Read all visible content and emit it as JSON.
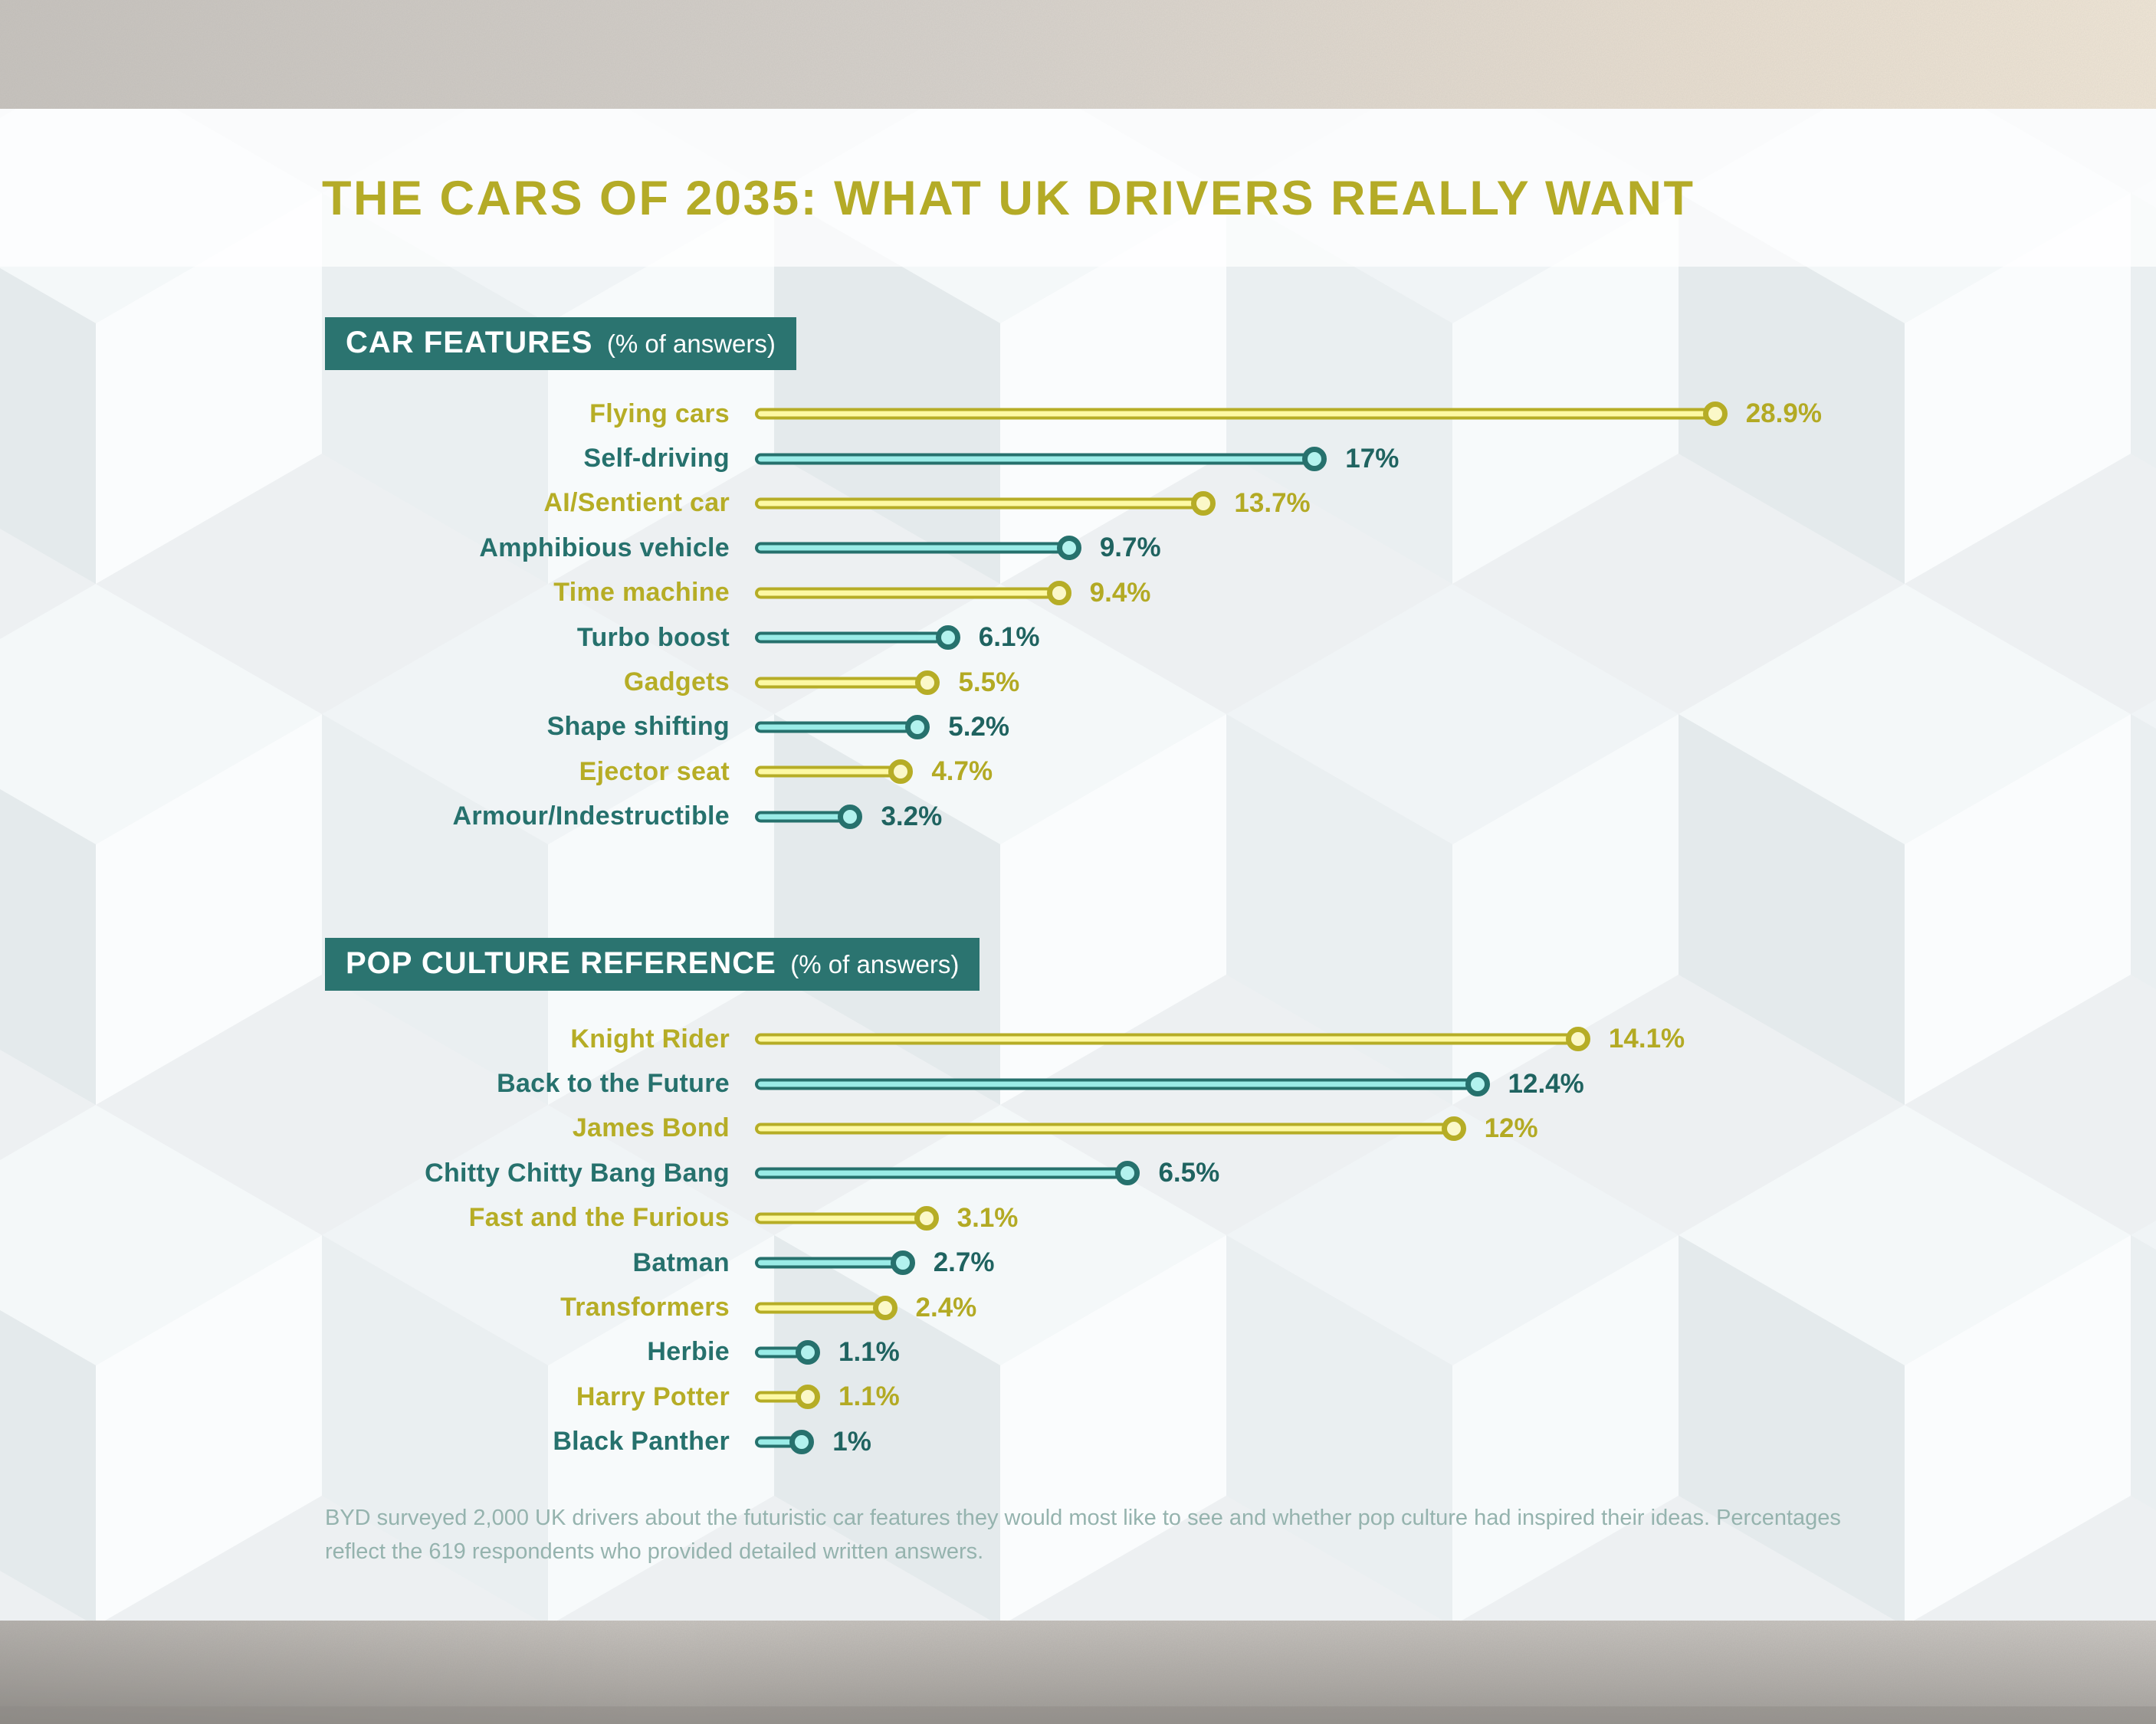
{
  "title": {
    "prefix": "THE CARS OF 2035: ",
    "emphasis": "WHAT UK DRIVERS REALLY WANT"
  },
  "chart_data": [
    {
      "type": "bar",
      "orientation": "horizontal",
      "title": "CAR FEATURES",
      "subtitle": "(% of answers)",
      "categories": [
        "Flying cars",
        "Self-driving",
        "AI/Sentient car",
        "Amphibious vehicle",
        "Time machine",
        "Turbo boost",
        "Gadgets",
        "Shape shifting",
        "Ejector seat",
        "Armour/Indestructible"
      ],
      "values": [
        28.9,
        17,
        13.7,
        9.7,
        9.4,
        6.1,
        5.5,
        5.2,
        4.7,
        3.2
      ],
      "value_labels": [
        "28.9%",
        "17%",
        "13.7%",
        "9.7%",
        "9.4%",
        "6.1%",
        "5.5%",
        "5.2%",
        "4.7%",
        "3.2%"
      ],
      "unit": "% of answers",
      "xlim": [
        0,
        30
      ],
      "grid": false,
      "legend": null,
      "color_pattern": [
        "olive",
        "teal"
      ]
    },
    {
      "type": "bar",
      "orientation": "horizontal",
      "title": "POP CULTURE REFERENCE",
      "subtitle": "(% of answers)",
      "categories": [
        "Knight Rider",
        "Back to the Future",
        "James Bond",
        "Chitty Chitty Bang Bang",
        "Fast and the Furious",
        "Batman",
        "Transformers",
        "Herbie",
        "Harry Potter",
        "Black Panther"
      ],
      "values": [
        14.1,
        12.4,
        12,
        6.5,
        3.1,
        2.7,
        2.4,
        1.1,
        1.1,
        1
      ],
      "value_labels": [
        "14.1%",
        "12.4%",
        "12%",
        "6.5%",
        "3.1%",
        "2.7%",
        "2.4%",
        "1.1%",
        "1.1%",
        "1%"
      ],
      "unit": "% of answers",
      "xlim": [
        0,
        15
      ],
      "grid": false,
      "legend": null,
      "color_pattern": [
        "olive",
        "teal"
      ]
    }
  ],
  "footnote": "BYD surveyed 2,000 UK drivers about the futuristic car features they would most like to see and whether pop culture had inspired their ideas. Percentages reflect the 619 respondents who provided detailed written answers.",
  "colors": {
    "olive": "#b6ad26",
    "olive_light": "#fdf9a4",
    "olive_fill": "#fbf8c8",
    "olive_text": "#b3aa24",
    "teal": "#26716d",
    "teal_light": "#9aece7",
    "teal_fill": "#b2f2ee",
    "teal_text": "#1f6360",
    "header_bg": "#2b7470",
    "header_text": "#ffffff",
    "title_color": "#b4ab27",
    "footnote_color": "#95b3ae"
  }
}
